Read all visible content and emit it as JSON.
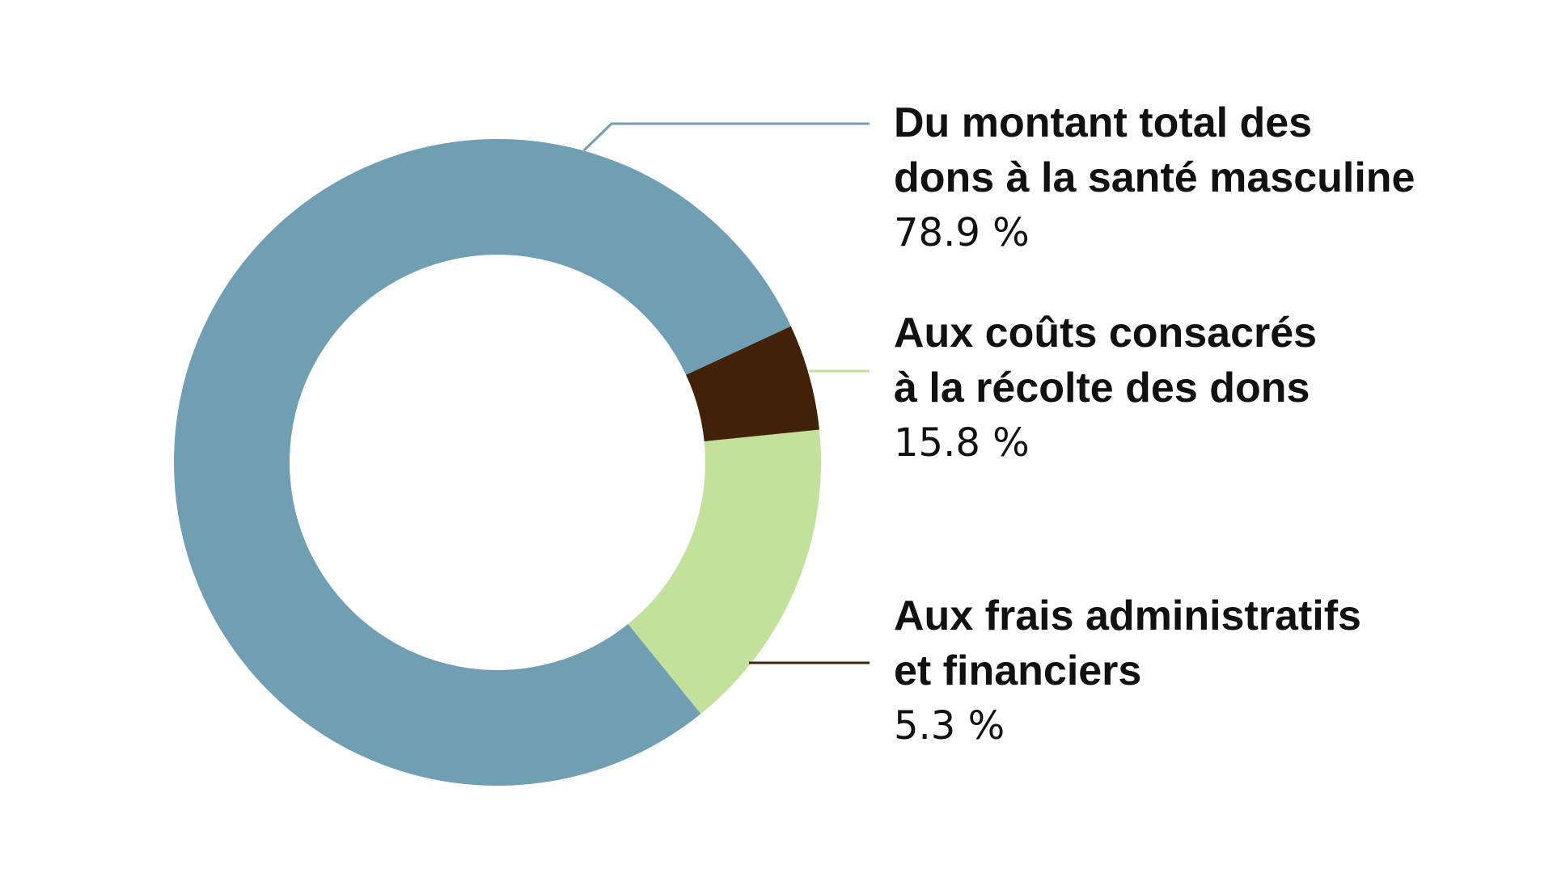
{
  "chart_data": {
    "type": "pie",
    "donut": true,
    "title": "",
    "slices": [
      {
        "label_lines": [
          "Du montant total des",
          "dons à la santé masculine"
        ],
        "value": 78.9,
        "value_label": "78.9 %",
        "color": "#709eb3"
      },
      {
        "label_lines": [
          "Aux coûts consacrés",
          "à la récolte des dons"
        ],
        "value": 15.8,
        "value_label": "15.8 %",
        "color": "#c2e19b"
      },
      {
        "label_lines": [
          "Aux frais administratifs",
          "et financiers"
        ],
        "value": 5.3,
        "value_label": "5.3 %",
        "color": "#422109"
      }
    ],
    "legend_placement": "right"
  }
}
